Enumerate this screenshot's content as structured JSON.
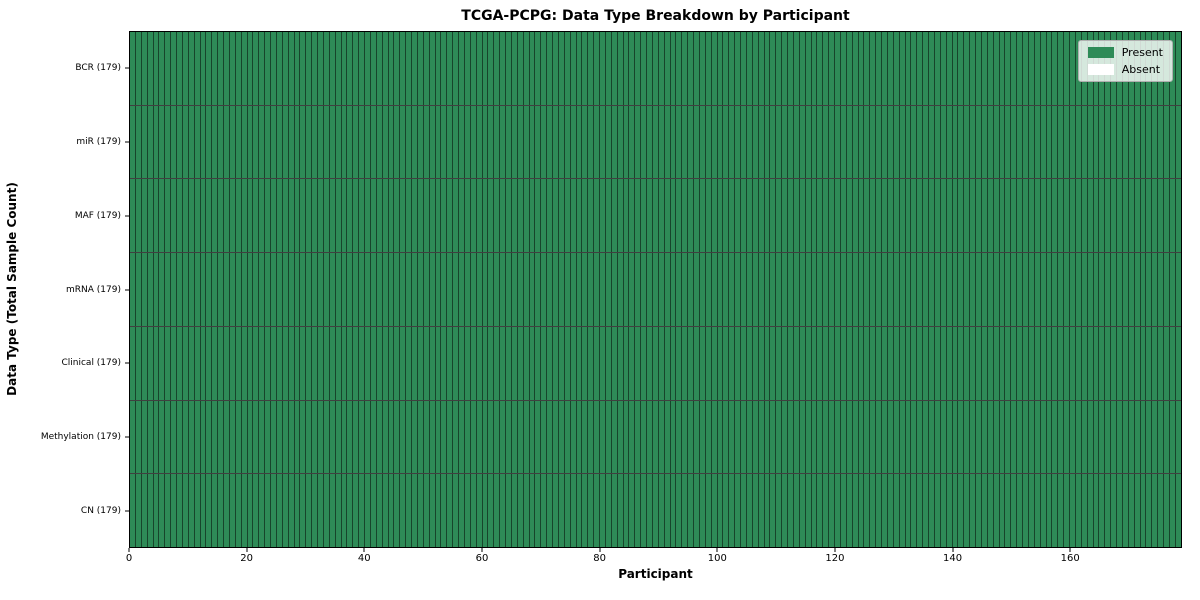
{
  "chart_data": {
    "type": "heatmap",
    "title": "TCGA-PCPG: Data Type Breakdown by Participant",
    "xlabel": "Participant",
    "ylabel": "Data Type (Total Sample Count)",
    "x_range": [
      0,
      179
    ],
    "x_ticks": [
      0,
      20,
      40,
      60,
      80,
      100,
      120,
      140,
      160
    ],
    "n_participants": 179,
    "rows": [
      {
        "label": "BCR (179)",
        "data_type": "BCR",
        "total_samples": 179,
        "present_count": 179,
        "absent_count": 0
      },
      {
        "label": "miR (179)",
        "data_type": "miR",
        "total_samples": 179,
        "present_count": 179,
        "absent_count": 0
      },
      {
        "label": "MAF (179)",
        "data_type": "MAF",
        "total_samples": 179,
        "present_count": 179,
        "absent_count": 0
      },
      {
        "label": "mRNA (179)",
        "data_type": "mRNA",
        "total_samples": 179,
        "present_count": 179,
        "absent_count": 0
      },
      {
        "label": "Clinical (179)",
        "data_type": "Clinical",
        "total_samples": 179,
        "present_count": 179,
        "absent_count": 0
      },
      {
        "label": "Methylation (179)",
        "data_type": "Methylation",
        "total_samples": 179,
        "present_count": 179,
        "absent_count": 0
      },
      {
        "label": "CN (179)",
        "data_type": "CN",
        "total_samples": 179,
        "present_count": 179,
        "absent_count": 0
      }
    ],
    "legend": [
      {
        "label": "Present",
        "color": "#2e8b57"
      },
      {
        "label": "Absent",
        "color": "#ffffff"
      }
    ],
    "legend_position": "upper right",
    "colors": {
      "present": "#2e8b57",
      "absent": "#ffffff",
      "plot_border": "#000000"
    },
    "grid": true
  }
}
